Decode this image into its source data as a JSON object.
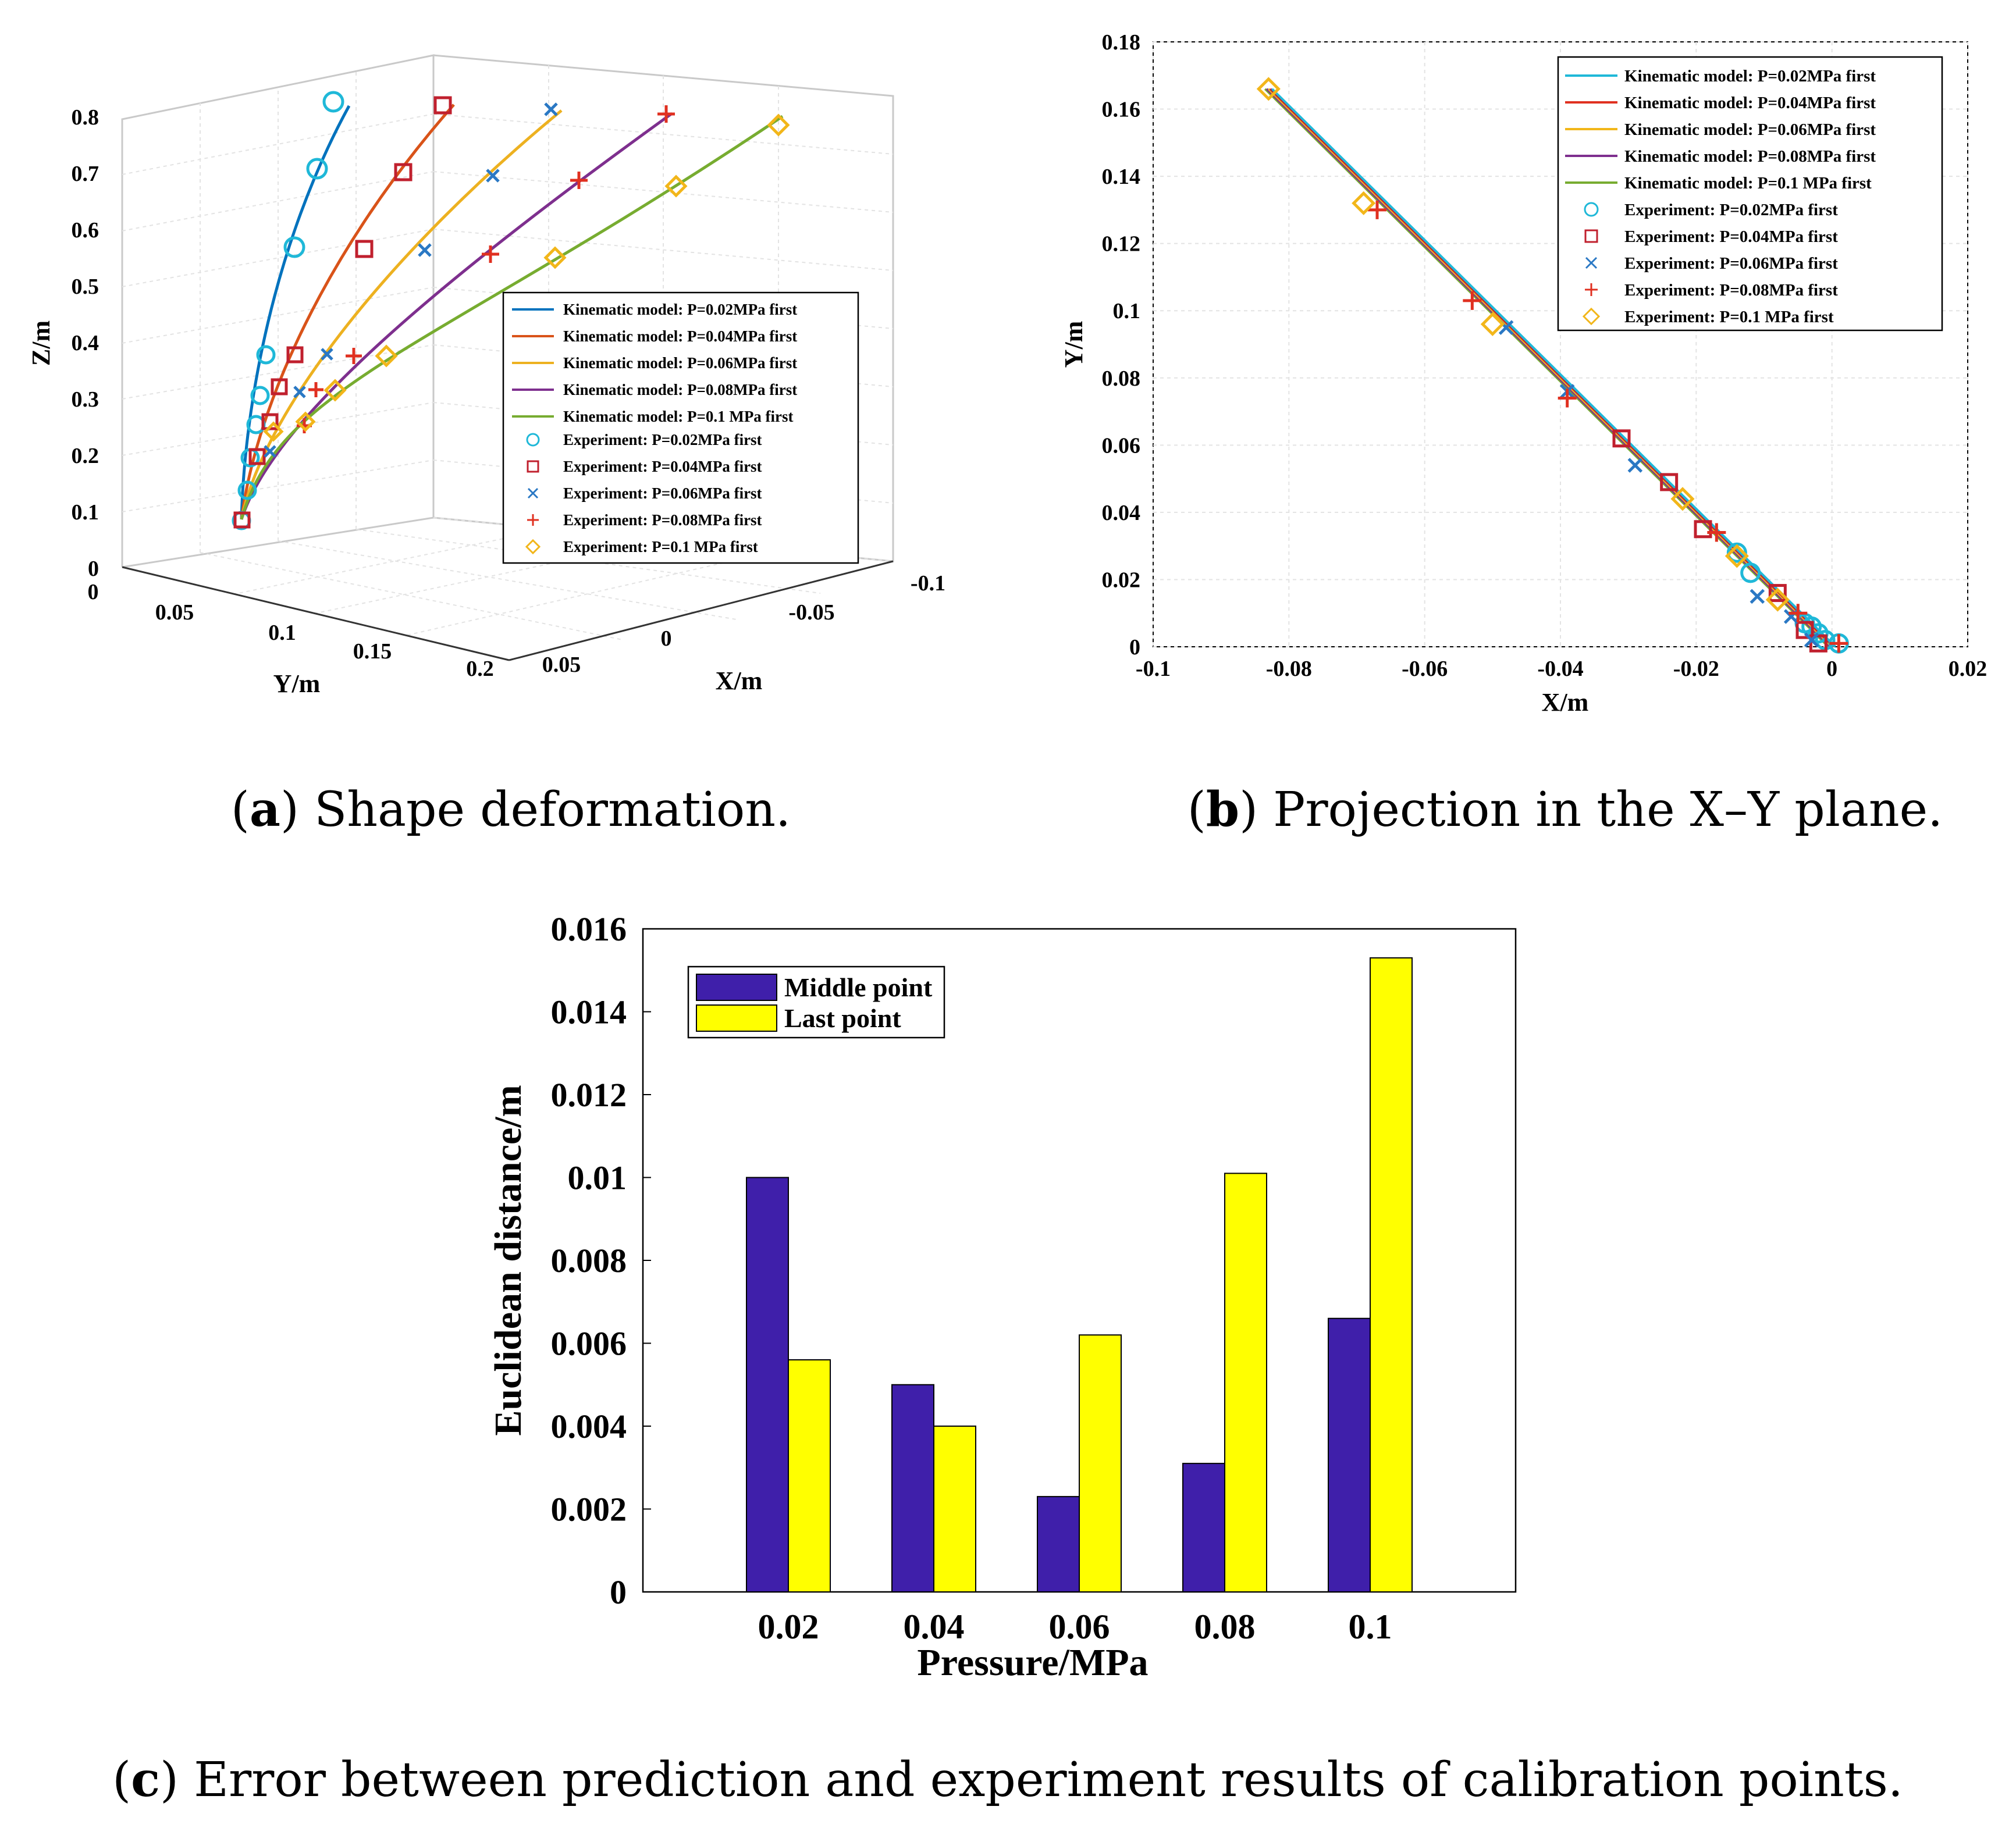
{
  "colors": {
    "p002": "#0072BD",
    "p004": "#D95319",
    "p006": "#EDB120",
    "p008": "#7E2F8E",
    "p01": "#77AC30",
    "exp002": "#1FB8D8",
    "exp004": "#C0202E",
    "exp006": "#2A78C4",
    "exp008": "#E03020",
    "exp01": "#F2B61A",
    "barMiddle": "#3F1FAA",
    "barLast": "#FFFF00"
  },
  "legend": {
    "model": [
      "Kinematic model: P=0.02MPa first",
      "Kinematic model: P=0.04MPa first",
      "Kinematic model: P=0.06MPa first",
      "Kinematic model: P=0.08MPa first",
      "Kinematic model: P=0.1 MPa first"
    ],
    "experiment": [
      "Experiment: P=0.02MPa first",
      "Experiment: P=0.04MPa first",
      "Experiment: P=0.06MPa first",
      "Experiment: P=0.08MPa first",
      "Experiment: P=0.1 MPa first"
    ]
  },
  "captions": {
    "a_letter": "a",
    "a_text": " Shape deformation.",
    "b_letter": "b",
    "b_text": " Projection in the X–Y plane.",
    "c_letter": "c",
    "c_text": " Error between prediction and experiment results of calibration points."
  },
  "chart_data": [
    {
      "type": "line",
      "title": "Shape deformation (3D)",
      "xlabel": "X/m",
      "ylabel": "Y/m",
      "zlabel": "Z/m",
      "xticks": [
        "-0.1",
        "-0.05",
        "0",
        "0.05"
      ],
      "yticks": [
        "0",
        "0.05",
        "0.1",
        "0.15",
        "0.2"
      ],
      "zticks": [
        "0",
        "0.1",
        "0.2",
        "0.3",
        "0.4",
        "0.5",
        "0.6",
        "0.7",
        "0.8"
      ],
      "legend_location": "right",
      "series": [
        {
          "name": "P=0.02MPa",
          "tip": {
            "x": 0.002,
            "y": 0.005,
            "z": 0.83
          }
        },
        {
          "name": "P=0.04MPa",
          "tip": {
            "x": -0.03,
            "y": 0.06,
            "z": 0.82
          }
        },
        {
          "name": "P=0.06MPa",
          "tip": {
            "x": -0.05,
            "y": 0.09,
            "z": 0.8
          }
        },
        {
          "name": "P=0.08MPa",
          "tip": {
            "x": -0.065,
            "y": 0.13,
            "z": 0.79
          }
        },
        {
          "name": "P=0.1MPa",
          "tip": {
            "x": -0.083,
            "y": 0.166,
            "z": 0.78
          }
        }
      ]
    },
    {
      "type": "scatter",
      "title": "Projection in the X–Y plane",
      "xlabel": "X/m",
      "ylabel": "Y/m",
      "xlim": [
        -0.1,
        0.02
      ],
      "ylim": [
        0,
        0.18
      ],
      "xticks": [
        "-0.1",
        "-0.08",
        "-0.06",
        "-0.04",
        "-0.02",
        "0",
        "0.02"
      ],
      "yticks": [
        "0",
        "0.02",
        "0.04",
        "0.06",
        "0.08",
        "0.1",
        "0.12",
        "0.14",
        "0.16",
        "0.18"
      ],
      "legend_location": "top-right",
      "model_line": {
        "x": [
          -0.083,
          0.0
        ],
        "y": [
          0.166,
          0.0
        ]
      },
      "series": [
        {
          "name": "Experiment: P=0.02MPa first",
          "marker": "circle",
          "x": [
            0.001,
            -0.001,
            -0.002,
            -0.003,
            -0.004,
            -0.012,
            -0.014
          ],
          "y": [
            0.001,
            0.002,
            0.004,
            0.006,
            0.007,
            0.022,
            0.028
          ]
        },
        {
          "name": "Experiment: P=0.04MPa first",
          "marker": "square",
          "x": [
            -0.002,
            -0.004,
            -0.008,
            -0.019,
            -0.024,
            -0.031
          ],
          "y": [
            0.001,
            0.005,
            0.016,
            0.035,
            0.049,
            0.062
          ]
        },
        {
          "name": "Experiment: P=0.06MPa first",
          "marker": "x",
          "x": [
            -0.003,
            -0.006,
            -0.011,
            -0.029,
            -0.039,
            -0.048
          ],
          "y": [
            0.002,
            0.009,
            0.015,
            0.054,
            0.076,
            0.095
          ]
        },
        {
          "name": "Experiment: P=0.08MPa first",
          "marker": "plus",
          "x": [
            0.001,
            -0.005,
            -0.017,
            -0.039,
            -0.053,
            -0.067
          ],
          "y": [
            0.001,
            0.01,
            0.034,
            0.074,
            0.103,
            0.13
          ]
        },
        {
          "name": "Experiment: P=0.1 MPa first",
          "marker": "diamond",
          "x": [
            -0.008,
            -0.014,
            -0.022,
            -0.05,
            -0.069,
            -0.083
          ],
          "y": [
            0.014,
            0.027,
            0.044,
            0.096,
            0.132,
            0.166
          ]
        }
      ]
    },
    {
      "type": "bar",
      "title": "Error between prediction and experiment results of calibration points",
      "xlabel": "Pressure/MPa",
      "ylabel": "Euclidean distance/m",
      "categories": [
        "0.02",
        "0.04",
        "0.06",
        "0.08",
        "0.1"
      ],
      "ylim": [
        0,
        0.016
      ],
      "yticks": [
        "0",
        "0.002",
        "0.004",
        "0.006",
        "0.008",
        "0.01",
        "0.012",
        "0.014",
        "0.016"
      ],
      "legend_location": "top-left",
      "series": [
        {
          "name": "Middle point",
          "values": [
            0.01,
            0.005,
            0.0023,
            0.0031,
            0.0066
          ]
        },
        {
          "name": "Last point",
          "values": [
            0.0056,
            0.004,
            0.0062,
            0.0101,
            0.0153
          ]
        }
      ]
    }
  ]
}
